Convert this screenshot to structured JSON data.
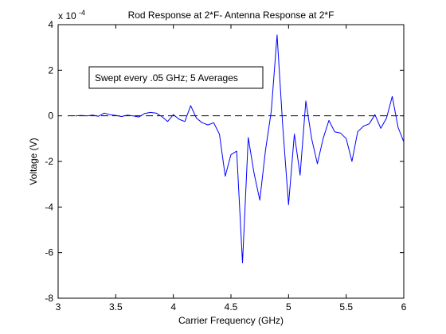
{
  "chart_data": {
    "type": "line",
    "title": "Rod Response at 2*F- Antenna Response at 2*F",
    "xlabel": "Carrier Frequency (GHz)",
    "ylabel": "Voltage (V)",
    "exponent_label": "x 10",
    "exponent_power": "-4",
    "annotation": "Swept every .05 GHz; 5 Averages",
    "xlim": [
      3,
      6
    ],
    "ylim": [
      -8,
      4
    ],
    "y_scale_factor": 0.0001,
    "x_ticks": [
      {
        "value": 3,
        "label": "3"
      },
      {
        "value": 3.5,
        "label": "3.5"
      },
      {
        "value": 4,
        "label": "4"
      },
      {
        "value": 4.5,
        "label": "4.5"
      },
      {
        "value": 5,
        "label": "5"
      },
      {
        "value": 5.5,
        "label": "5.5"
      },
      {
        "value": 6,
        "label": "6"
      }
    ],
    "y_ticks": [
      {
        "value": 4,
        "label": "4"
      },
      {
        "value": 2,
        "label": "2"
      },
      {
        "value": 0,
        "label": "0"
      },
      {
        "value": -2,
        "label": "-2"
      },
      {
        "value": -4,
        "label": "-4"
      },
      {
        "value": -6,
        "label": "-6"
      },
      {
        "value": -8,
        "label": "-8"
      }
    ],
    "reference_line": {
      "y": 0,
      "style": "dashed",
      "color": "#000000"
    },
    "series": [
      {
        "color": "#0000ff",
        "x": [
          3.15,
          3.2,
          3.25,
          3.3,
          3.35,
          3.4,
          3.45,
          3.5,
          3.55,
          3.6,
          3.65,
          3.7,
          3.75,
          3.8,
          3.85,
          3.9,
          3.95,
          4.0,
          4.05,
          4.1,
          4.15,
          4.2,
          4.25,
          4.3,
          4.35,
          4.4,
          4.45,
          4.5,
          4.55,
          4.6,
          4.65,
          4.7,
          4.75,
          4.8,
          4.85,
          4.9,
          4.95,
          5.0,
          5.05,
          5.1,
          5.15,
          5.2,
          5.25,
          5.3,
          5.35,
          5.4,
          5.45,
          5.5,
          5.55,
          5.6,
          5.65,
          5.7,
          5.75,
          5.8,
          5.85,
          5.9,
          5.95,
          6.0
        ],
        "y": [
          0.0,
          0.02,
          0.0,
          0.03,
          -0.02,
          0.12,
          0.05,
          0.02,
          -0.03,
          0.03,
          0.0,
          -0.05,
          0.1,
          0.15,
          0.12,
          -0.03,
          -0.25,
          0.05,
          -0.15,
          -0.25,
          0.45,
          -0.1,
          -0.3,
          -0.4,
          -0.3,
          -0.8,
          -2.65,
          -1.7,
          -1.55,
          -6.45,
          -0.95,
          -2.5,
          -3.7,
          -1.5,
          0.2,
          3.55,
          -0.5,
          -3.9,
          -0.8,
          -2.6,
          0.65,
          -1.0,
          -2.1,
          -1.0,
          -0.2,
          -0.7,
          -0.75,
          -1.0,
          -2.0,
          -0.7,
          -0.45,
          -0.35,
          0.05,
          -0.55,
          -0.1,
          0.85,
          -0.5,
          -1.15
        ]
      }
    ]
  }
}
